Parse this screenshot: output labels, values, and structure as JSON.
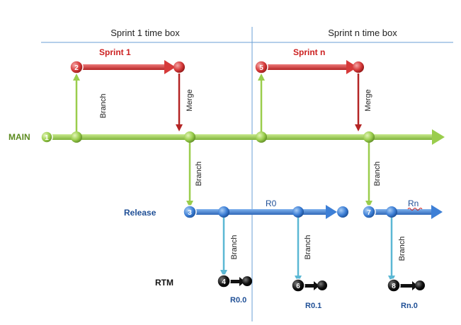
{
  "timeboxes": {
    "sprint1": "Sprint 1 time box",
    "sprintn": "Sprint n time box"
  },
  "labels": {
    "main": "MAIN",
    "release": "Release",
    "rtm": "RTM"
  },
  "branches": {
    "sprint1": "Sprint 1",
    "sprintn": "Sprint n",
    "r0": "R0",
    "rn": "Rn"
  },
  "releases": {
    "r00": "R0.0",
    "r01": "R0.1",
    "rn0": "Rn.0"
  },
  "actions": {
    "branch": "Branch",
    "merge": "Merge"
  },
  "steps": [
    "1",
    "2",
    "3",
    "4",
    "5",
    "6",
    "7",
    "8"
  ],
  "colors": {
    "main": "#9acd4c",
    "main_dark": "#6f9e2c",
    "sprint": "#d63a3a",
    "sprint_dark": "#a31f1f",
    "release": "#3d7fd6",
    "release_dark": "#1f5aa8",
    "connector": "#5bb8d4",
    "rtm": "#111111",
    "divider": "#6a9fd4",
    "main_label": "#5b8a1e",
    "sprint_label": "#cc1f1f",
    "release_label": "#1f4f96"
  }
}
